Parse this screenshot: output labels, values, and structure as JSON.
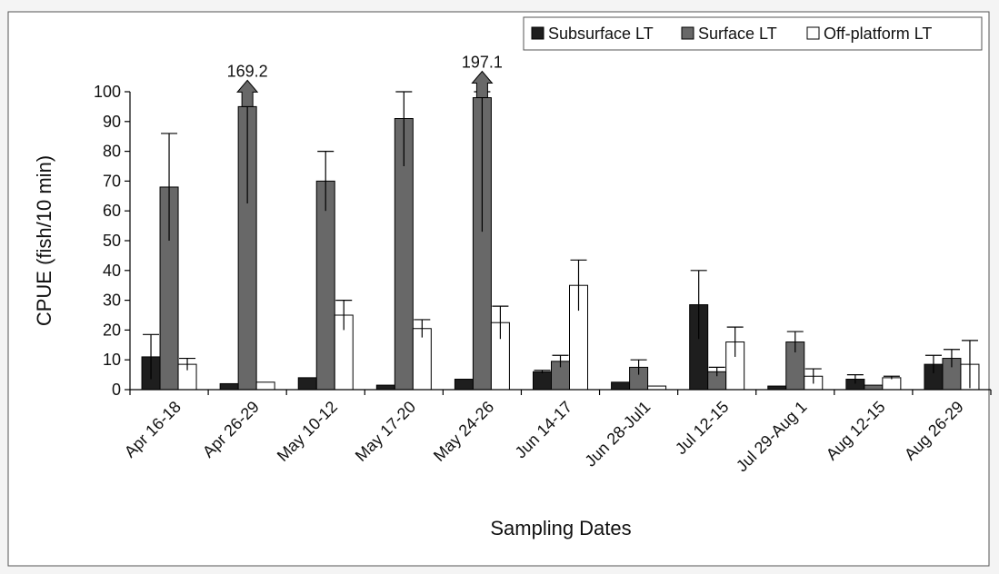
{
  "chart_data": {
    "type": "bar",
    "xlabel": "Sampling Dates",
    "ylabel": "CPUE (fish/10 min)",
    "ylim": [
      0,
      100
    ],
    "yticks": [
      0,
      10,
      20,
      30,
      40,
      50,
      60,
      70,
      80,
      90,
      100
    ],
    "grid": false,
    "legend_position": "top-right",
    "categories": [
      "Apr 16-18",
      "Apr 26-29",
      "May 10-12",
      "May 17-20",
      "May 24-26",
      "Jun 14-17",
      "Jun 28-Jul1",
      "Jul 12-15",
      "Jul 29-Aug 1",
      "Aug 12-15",
      "Aug 26-29"
    ],
    "series": [
      {
        "name": "Subsurface LT",
        "color": "#1e1e1e",
        "values": [
          11,
          2,
          4,
          1.5,
          3.5,
          6,
          2.5,
          28.5,
          1.2,
          3.5,
          8.5
        ],
        "error": [
          7.5,
          0,
          0,
          0,
          0,
          0.5,
          0,
          11.5,
          0,
          1.5,
          3
        ]
      },
      {
        "name": "Surface LT",
        "color": "#686868",
        "values": [
          68,
          95,
          70,
          91,
          98,
          9.5,
          7.5,
          6,
          16,
          1.5,
          10.5
        ],
        "error": [
          18,
          32.5,
          10,
          16,
          45,
          2,
          2.5,
          1.5,
          3.5,
          0,
          3
        ],
        "overflow": [
          null,
          169.2,
          null,
          null,
          197.1,
          null,
          null,
          null,
          null,
          null,
          null
        ]
      },
      {
        "name": "Off-platform LT",
        "color": "#ffffff",
        "values": [
          8.5,
          2.5,
          25,
          20.5,
          22.5,
          35,
          1.2,
          16,
          4.5,
          4,
          8.5
        ],
        "error": [
          2,
          0,
          5,
          3,
          5.5,
          8.5,
          0,
          5,
          2.5,
          0.5,
          8
        ]
      }
    ]
  }
}
